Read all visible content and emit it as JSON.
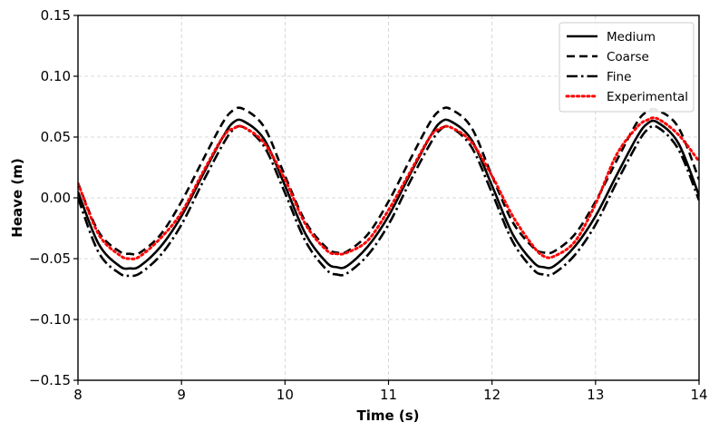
{
  "chart_data": {
    "type": "line",
    "title": "",
    "xlabel": "Time (s)",
    "ylabel": "Heave (m)",
    "xlim": [
      8,
      14
    ],
    "ylim": [
      -0.15,
      0.15
    ],
    "xticks": [
      8,
      9,
      10,
      11,
      12,
      13,
      14
    ],
    "xtick_labels": [
      "8",
      "9",
      "10",
      "11",
      "12",
      "13",
      "14"
    ],
    "yticks": [
      -0.15,
      -0.1,
      -0.05,
      0.0,
      0.05,
      0.1,
      0.15
    ],
    "ytick_labels": [
      "−0.15",
      "−0.10",
      "−0.05",
      "0.00",
      "0.05",
      "0.10",
      "0.15"
    ],
    "grid": true,
    "legend_position": "top-right",
    "x": [
      8.0,
      8.2,
      8.4,
      8.5,
      8.6,
      8.8,
      9.0,
      9.2,
      9.4,
      9.5,
      9.6,
      9.8,
      10.0,
      10.2,
      10.4,
      10.5,
      10.6,
      10.8,
      11.0,
      11.2,
      11.4,
      11.5,
      11.6,
      11.8,
      12.0,
      12.2,
      12.4,
      12.5,
      12.6,
      12.8,
      13.0,
      13.2,
      13.4,
      13.5,
      13.6,
      13.8,
      14.0
    ],
    "series": [
      {
        "name": "Medium",
        "color": "#000000",
        "style": "solid",
        "values": [
          0.005,
          -0.038,
          -0.056,
          -0.058,
          -0.056,
          -0.04,
          -0.015,
          0.018,
          0.05,
          0.062,
          0.063,
          0.048,
          0.01,
          -0.03,
          -0.053,
          -0.057,
          -0.056,
          -0.04,
          -0.015,
          0.018,
          0.05,
          0.062,
          0.063,
          0.048,
          0.01,
          -0.03,
          -0.053,
          -0.057,
          -0.056,
          -0.04,
          -0.015,
          0.018,
          0.05,
          0.061,
          0.062,
          0.045,
          0.002
        ]
      },
      {
        "name": "Coarse",
        "color": "#000000",
        "style": "dashed",
        "values": [
          0.012,
          -0.028,
          -0.044,
          -0.046,
          -0.045,
          -0.03,
          -0.003,
          0.03,
          0.062,
          0.072,
          0.073,
          0.058,
          0.018,
          -0.02,
          -0.041,
          -0.045,
          -0.044,
          -0.03,
          -0.003,
          0.03,
          0.062,
          0.072,
          0.073,
          0.058,
          0.018,
          -0.02,
          -0.041,
          -0.045,
          -0.044,
          -0.03,
          -0.003,
          0.03,
          0.062,
          0.071,
          0.072,
          0.058,
          0.015
        ]
      },
      {
        "name": "Fine",
        "color": "#000000",
        "style": "dashdot",
        "values": [
          0.0,
          -0.045,
          -0.062,
          -0.064,
          -0.062,
          -0.047,
          -0.022,
          0.012,
          0.044,
          0.056,
          0.058,
          0.042,
          0.004,
          -0.036,
          -0.059,
          -0.063,
          -0.062,
          -0.047,
          -0.022,
          0.012,
          0.044,
          0.056,
          0.058,
          0.042,
          0.004,
          -0.036,
          -0.059,
          -0.063,
          -0.062,
          -0.047,
          -0.022,
          0.012,
          0.044,
          0.056,
          0.058,
          0.04,
          -0.002
        ]
      },
      {
        "name": "Experimental",
        "color": "#ff0000",
        "style": "dotted",
        "values": [
          0.012,
          -0.03,
          -0.047,
          -0.05,
          -0.048,
          -0.033,
          -0.012,
          0.02,
          0.05,
          0.057,
          0.058,
          0.045,
          0.015,
          -0.022,
          -0.043,
          -0.046,
          -0.045,
          -0.035,
          -0.01,
          0.02,
          0.05,
          0.057,
          0.058,
          0.046,
          0.018,
          -0.015,
          -0.04,
          -0.048,
          -0.048,
          -0.036,
          -0.005,
          0.035,
          0.058,
          0.064,
          0.065,
          0.052,
          0.03
        ]
      }
    ]
  }
}
